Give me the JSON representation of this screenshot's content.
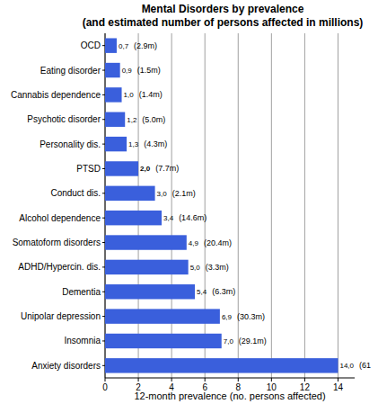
{
  "chart_data": {
    "type": "bar",
    "orientation": "horizontal",
    "title": "Mental Disorders by prevalence (and estimated number of persons affected in millions)",
    "x_label": "12-month prevalence (no. persons affected)",
    "categories": [
      "OCD",
      "Eating disorder",
      "Cannabis dependence",
      "Psychotic disorder",
      "Personality dis.",
      "PTSD",
      "Conduct dis.",
      "Alcohol dependence",
      "Somatoform disorders",
      "ADHD/Hypercin. dis.",
      "Dementia",
      "Unipolar depression",
      "Insomnia",
      "Anxiety disorders"
    ],
    "values": [
      0.7,
      0.9,
      1.0,
      1.2,
      1.3,
      2.0,
      3.0,
      3.4,
      4.9,
      5.0,
      5.4,
      6.9,
      7.0,
      14.0
    ],
    "value_labels": [
      "0,7",
      "0,9",
      "1,0",
      "1,2",
      "1,3",
      "2,0",
      "3,0",
      "3,4",
      "4,9",
      "5,0",
      "5,4",
      "6,9",
      "7,0",
      "14,0"
    ],
    "annotations": [
      "(2.9m)",
      "(1.5m)",
      "(1.4m)",
      "(5.0m)",
      "(4.3m)",
      "(7.7m)",
      "(2.1m)",
      "(14.6m)",
      "(20.4m)",
      "(3.3m)",
      "(6.3m)",
      "(30.3m)",
      "(29.1m)",
      "(61"
    ],
    "color": "#3a5fdc",
    "xlim": [
      0,
      15
    ],
    "xticks": [
      0,
      2,
      4,
      6,
      8,
      10,
      12,
      14
    ],
    "grid": true,
    "data_labels": true
  }
}
